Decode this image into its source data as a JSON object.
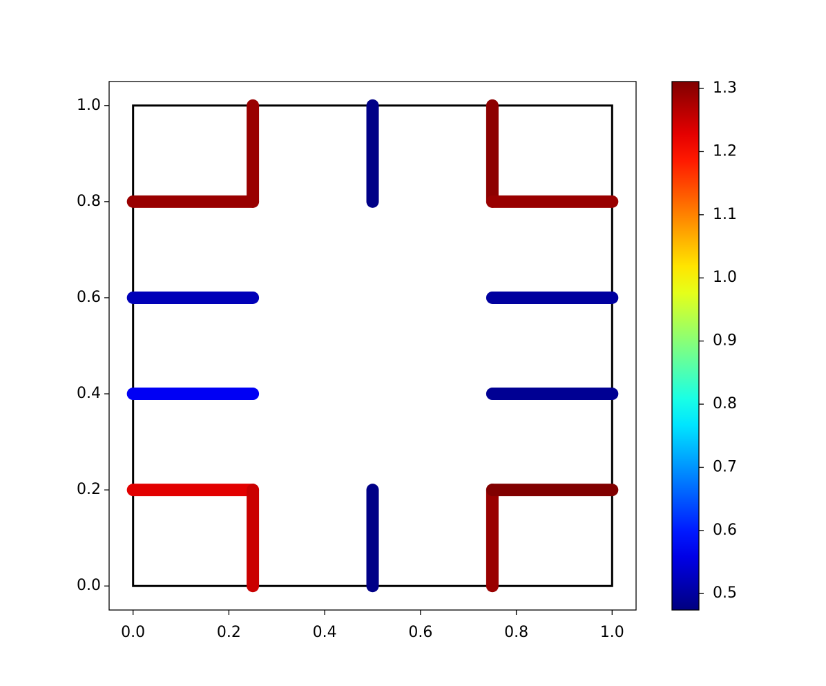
{
  "chart_data": {
    "type": "segments",
    "xlim": [
      -0.05,
      1.05
    ],
    "ylim": [
      -0.05,
      1.05
    ],
    "xticks": [
      {
        "value": 0,
        "label": "0.0"
      },
      {
        "value": 0.2,
        "label": "0.2"
      },
      {
        "value": 0.4,
        "label": "0.4"
      },
      {
        "value": 0.6,
        "label": "0.6"
      },
      {
        "value": 0.8,
        "label": "0.8"
      },
      {
        "value": 1,
        "label": "1.0"
      }
    ],
    "yticks": [
      {
        "value": 0,
        "label": "0.0"
      },
      {
        "value": 0.2,
        "label": "0.2"
      },
      {
        "value": 0.4,
        "label": "0.4"
      },
      {
        "value": 0.6,
        "label": "0.6"
      },
      {
        "value": 0.8,
        "label": "0.8"
      },
      {
        "value": 1,
        "label": "1.0"
      }
    ],
    "boundary": {
      "x": [
        0,
        1
      ],
      "y": [
        0,
        1
      ],
      "color": "#000000"
    },
    "colormap": "jet",
    "clim": [
      0.474,
      1.311
    ],
    "colorbar_ticks": [
      0.5,
      0.6,
      0.7,
      0.8,
      0.9,
      {
        "value": 1,
        "label": "1.0"
      },
      1.1,
      1.2,
      1.3
    ],
    "segments": [
      {
        "x": [
          0,
          0.25
        ],
        "y": [
          0.8,
          0.8
        ],
        "value": 1.29
      },
      {
        "x": [
          0.25,
          0.25
        ],
        "y": [
          0.8,
          1
        ],
        "value": 1.29
      },
      {
        "x": [
          0.5,
          0.5
        ],
        "y": [
          0.8,
          1
        ],
        "value": 0.48
      },
      {
        "x": [
          0.75,
          0.75
        ],
        "y": [
          0.8,
          1
        ],
        "value": 1.3
      },
      {
        "x": [
          0.75,
          1
        ],
        "y": [
          0.8,
          0.8
        ],
        "value": 1.29
      },
      {
        "x": [
          0,
          0.25
        ],
        "y": [
          0.6,
          0.6
        ],
        "value": 0.52
      },
      {
        "x": [
          0.75,
          1
        ],
        "y": [
          0.6,
          0.6
        ],
        "value": 0.5
      },
      {
        "x": [
          0,
          0.25
        ],
        "y": [
          0.4,
          0.4
        ],
        "value": 0.57
      },
      {
        "x": [
          0.75,
          1
        ],
        "y": [
          0.4,
          0.4
        ],
        "value": 0.49
      },
      {
        "x": [
          0,
          0.25
        ],
        "y": [
          0.2,
          0.2
        ],
        "value": 1.23
      },
      {
        "x": [
          0.25,
          0.25
        ],
        "y": [
          0,
          0.2
        ],
        "value": 1.25
      },
      {
        "x": [
          0.5,
          0.5
        ],
        "y": [
          0,
          0.2
        ],
        "value": 0.48
      },
      {
        "x": [
          0.75,
          0.75
        ],
        "y": [
          0,
          0.2
        ],
        "value": 1.29
      },
      {
        "x": [
          0.75,
          1
        ],
        "y": [
          0.2,
          0.2
        ],
        "value": 1.31
      }
    ]
  }
}
